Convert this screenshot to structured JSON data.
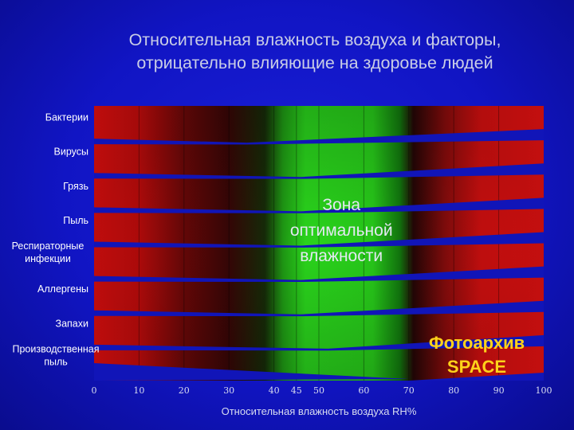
{
  "title_line1": "Относительная влажность воздуха и факторы,",
  "title_line2": "отрицательно влияющие на здоровье людей",
  "chart_data": {
    "type": "bar",
    "orientation": "horizontal",
    "title": "Относительная влажность воздуха и факторы, отрицательно влияющие на здоровье людей",
    "xlabel": "Относительная влажность воздуха RH%",
    "xlim": [
      0,
      100
    ],
    "xticks": [
      "0",
      "10",
      "20",
      "30",
      "40",
      "45",
      "50",
      "60",
      "70",
      "80",
      "90",
      "100"
    ],
    "categories": [
      {
        "label": "Бактерии"
      },
      {
        "label": "Вирусы"
      },
      {
        "label": "Грязь"
      },
      {
        "label": "Пыль"
      },
      {
        "label_lines": [
          "Респираторные",
          "инфекции"
        ]
      },
      {
        "label": "Аллергены"
      },
      {
        "label": "Запахи"
      },
      {
        "label_lines": [
          "Производственная",
          "пыль"
        ]
      }
    ],
    "optimal_zone": {
      "from": 40,
      "to": 70,
      "label_lines": [
        "Зона",
        "оптимальной",
        "влажности"
      ]
    },
    "grid": true,
    "colors": {
      "risk": "#e01010",
      "optimal": "#22c81e",
      "background": "#1115c4"
    }
  },
  "watermark_lines": [
    "Фотоархив",
    "SPACE"
  ]
}
